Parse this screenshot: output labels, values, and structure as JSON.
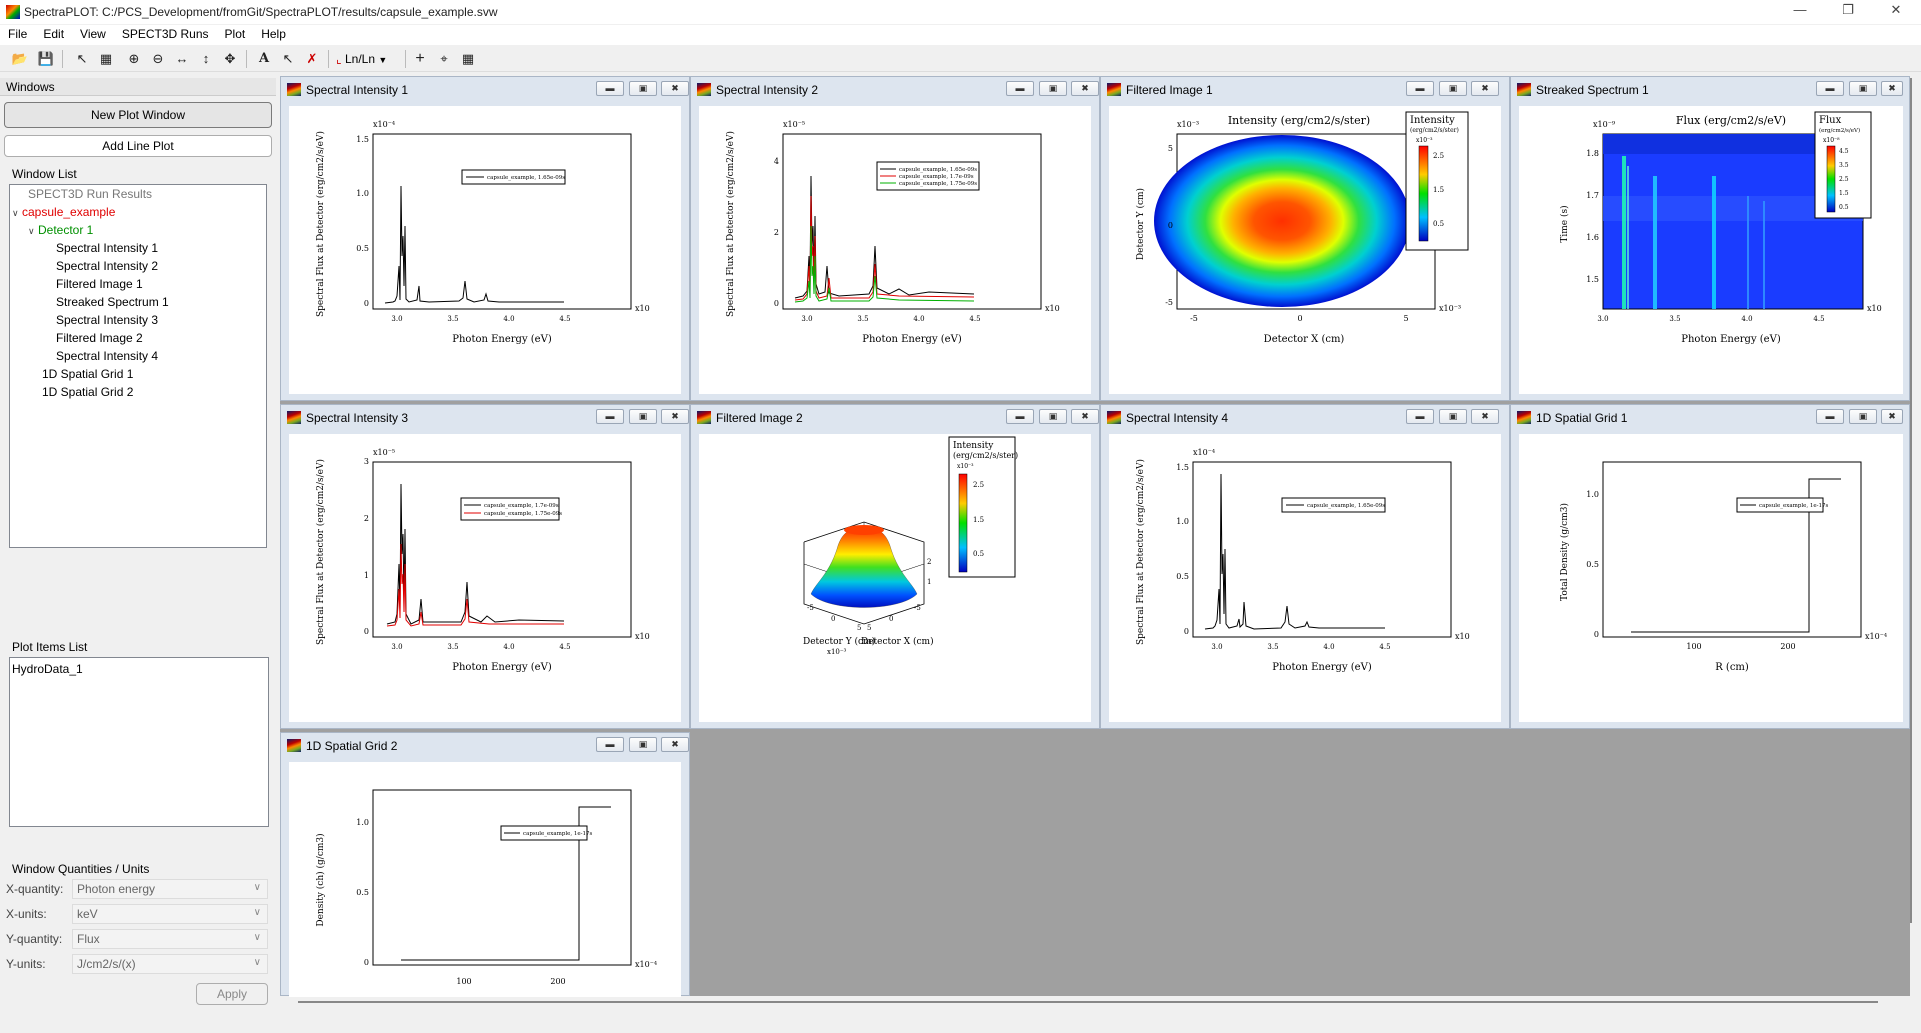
{
  "app": {
    "title": "SpectraPLOT:  C:/PCS_Development/fromGit/SpectraPLOT/results/capsule_example.svw",
    "minimize": "—",
    "maximize": "❐",
    "close": "✕"
  },
  "menu": [
    "File",
    "Edit",
    "View",
    "SPECT3D Runs",
    "Plot",
    "Help"
  ],
  "toolbar": {
    "scale_label": "Ln/Ln",
    "bold_a": "A"
  },
  "left": {
    "windows_header": "Windows",
    "new_plot_window": "New Plot Window",
    "add_line_plot": "Add Line Plot",
    "window_list_label": "Window List",
    "tree": {
      "root": "SPECT3D Run Results",
      "run": "capsule_example",
      "detector": "Detector 1",
      "detector_items": [
        "Spectral Intensity 1",
        "Spectral Intensity 2",
        "Filtered Image 1",
        "Streaked Spectrum 1",
        "Spectral Intensity 3",
        "Filtered Image 2",
        "Spectral Intensity 4"
      ],
      "grids": [
        "1D Spatial Grid 1",
        "1D Spatial Grid 2"
      ]
    },
    "plot_items_label": "Plot Items List",
    "plot_items": [
      "HydroData_1"
    ],
    "quantities_label": "Window Quantities / Units",
    "quantities": [
      {
        "label": "X-quantity:",
        "value": "Photon energy"
      },
      {
        "label": "X-units:",
        "value": "keV"
      },
      {
        "label": "Y-quantity:",
        "value": "Flux"
      },
      {
        "label": "Y-units:",
        "value": "J/cm2/s/(x)"
      }
    ],
    "apply": "Apply"
  },
  "windows": [
    {
      "title": "Spectral Intensity 1"
    },
    {
      "title": "Spectral Intensity 2"
    },
    {
      "title": "Filtered Image 1"
    },
    {
      "title": "Streaked Spectrum 1"
    },
    {
      "title": "Spectral Intensity 3"
    },
    {
      "title": "Filtered Image 2"
    },
    {
      "title": "Spectral Intensity 4"
    },
    {
      "title": "1D Spatial Grid 1"
    },
    {
      "title": "1D Spatial Grid 2"
    }
  ],
  "plots": {
    "spectral_xlabel": "Photon Energy (eV)",
    "spectral_ylabel": "Spectral Flux at Detector (erg/cm2/s/eV)",
    "xscale_note": "x10",
    "spectral_xticks": [
      "3.0",
      "3.5",
      "4.0",
      "4.5"
    ],
    "si1": {
      "yticks": [
        "1.5",
        "1.0",
        "0.5",
        "0"
      ],
      "legend": [
        "capsule_example, 1.65e-09s"
      ]
    },
    "si2": {
      "yticks": [
        "4",
        "2",
        "0"
      ],
      "legend": [
        "capsule_example, 1.65e-09s",
        "capsule_example, 1.7e-09s",
        "capsule_example, 1.75e-09s"
      ]
    },
    "si3": {
      "yticks": [
        "3",
        "2",
        "1",
        "0"
      ],
      "legend": [
        "capsule_example, 1.7e-09s",
        "capsule_example, 1.75e-09s"
      ]
    },
    "si4": {
      "yticks": [
        "1.5",
        "1.0",
        "0.5",
        "0"
      ],
      "legend": [
        "capsule_example, 1.65e-09s"
      ]
    },
    "fi1": {
      "title": "Intensity (erg/cm2/s/ster)",
      "cbar_title": "Intensity",
      "cbar_sub": "(erg/cm2/s/ster)",
      "cbar_ticks": [
        "2.5",
        "1.5",
        "0.5"
      ],
      "xlabel": "Detector X (cm)",
      "ylabel": "Detector Y (cm)",
      "xticks": [
        "-5",
        "0",
        "5"
      ],
      "yticks": [
        "5",
        "0",
        "-5"
      ]
    },
    "ss1": {
      "title": "Flux (erg/cm2/s/eV)",
      "cbar_title": "Flux",
      "cbar_sub": "(erg/cm2/s/eV)",
      "cbar_ticks": [
        "4.5",
        "3.5",
        "2.5",
        "1.5",
        "0.5"
      ],
      "xlabel": "Photon Energy (eV)",
      "ylabel": "Time (s)",
      "yticks": [
        "1.8",
        "1.7",
        "1.6",
        "1.5"
      ],
      "xticks": [
        "3.0",
        "3.5",
        "4.0",
        "4.5"
      ]
    },
    "fi2": {
      "cbar_title": "Intensity",
      "cbar_sub": "(erg/cm2/s/ster)",
      "cbar_ticks": [
        "2.5",
        "1.5",
        "0.5"
      ],
      "xlabel_y": "Detector Y (cm)",
      "xlabel_x": "Detector X (cm)"
    },
    "sg1": {
      "ylabel": "Total Density (g/cm3)",
      "xlabel": "R (cm)",
      "yticks": [
        "1.0",
        "0.5",
        "0"
      ],
      "xticks": [
        "100",
        "200"
      ],
      "legend": [
        "capsule_example, 1e-17s"
      ]
    },
    "sg2": {
      "ylabel": "Density (ch) (g/cm3)",
      "yticks": [
        "1.0",
        "0.5",
        "0"
      ],
      "xticks": [
        "100",
        "200"
      ],
      "legend": [
        "capsule_example, 1e-17s"
      ]
    }
  },
  "colors": {
    "series_black": "#000000",
    "series_red": "#e00000",
    "series_green": "#00b000"
  }
}
